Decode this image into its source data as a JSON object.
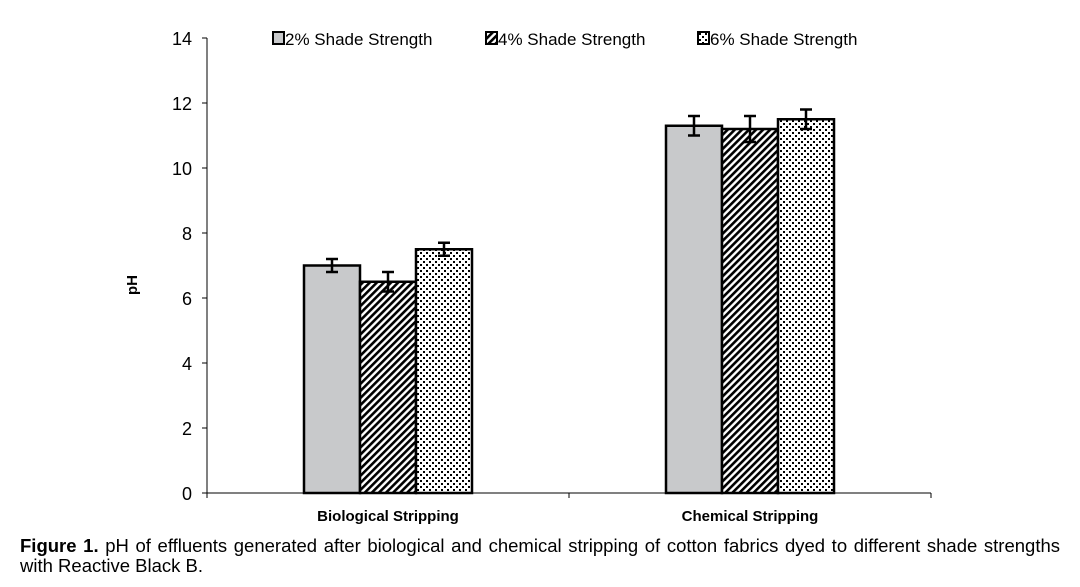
{
  "chart_data": {
    "type": "bar",
    "categories": [
      "Biological Stripping",
      "Chemical Stripping"
    ],
    "series": [
      {
        "name": "2% Shade Strength",
        "values": [
          7.0,
          11.3
        ],
        "errors": [
          0.2,
          0.3
        ],
        "pattern": "solid",
        "color": "#c8c9cb"
      },
      {
        "name": "4% Shade Strength",
        "values": [
          6.5,
          11.2
        ],
        "errors": [
          0.3,
          0.4
        ],
        "pattern": "diagonal-stripes",
        "color": "#000000"
      },
      {
        "name": "6% Shade Strength",
        "values": [
          7.5,
          11.5
        ],
        "errors": [
          0.2,
          0.3
        ],
        "pattern": "dots",
        "color": "#000000"
      }
    ],
    "ylabel": "pH",
    "xlabel": "",
    "ylim": [
      0,
      14
    ],
    "yticks": [
      "0",
      "2",
      "4",
      "6",
      "8",
      "10",
      "12",
      "14"
    ],
    "legend_position": "top",
    "grid": false
  },
  "caption": {
    "label": "Figure 1.",
    "text": "pH of effluents generated after biological and chemical stripping of cotton fabrics dyed to different shade strengths with Reactive Black B."
  }
}
